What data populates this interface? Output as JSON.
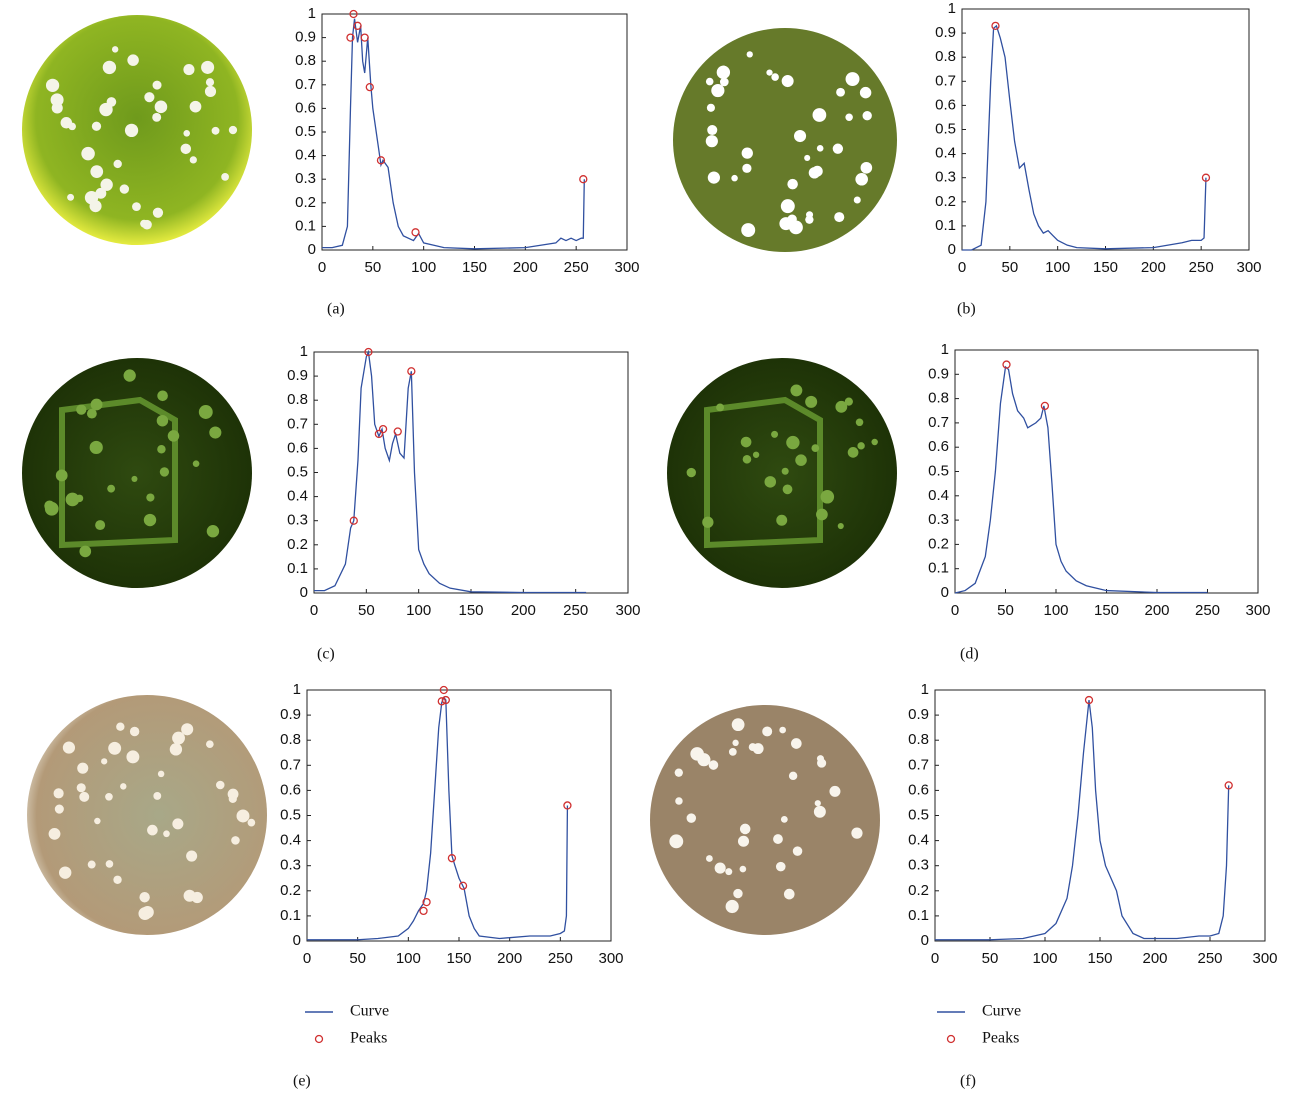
{
  "chart_data": [
    {
      "type": "line",
      "caption": "(a)",
      "xlim": [
        0,
        300
      ],
      "ylim": [
        0,
        1
      ],
      "xticks": [
        0,
        50,
        100,
        150,
        200,
        250,
        300
      ],
      "yticks": [
        0,
        0.1,
        0.2,
        0.3,
        0.4,
        0.5,
        0.6,
        0.7,
        0.8,
        0.9,
        1
      ],
      "series": [
        {
          "color": "#3050a0",
          "x": [
            0,
            10,
            20,
            25,
            28,
            30,
            32,
            35,
            38,
            40,
            42,
            45,
            48,
            50,
            55,
            58,
            60,
            65,
            70,
            75,
            80,
            90,
            95,
            100,
            110,
            120,
            150,
            200,
            230,
            235,
            240,
            245,
            250,
            255,
            257,
            258
          ],
          "values": [
            0.01,
            0.01,
            0.02,
            0.1,
            0.6,
            0.9,
            0.98,
            0.88,
            0.95,
            0.8,
            0.75,
            0.9,
            0.7,
            0.6,
            0.45,
            0.36,
            0.38,
            0.35,
            0.2,
            0.1,
            0.06,
            0.04,
            0.07,
            0.03,
            0.02,
            0.01,
            0.005,
            0.01,
            0.03,
            0.05,
            0.04,
            0.05,
            0.04,
            0.05,
            0.05,
            0.3
          ]
        },
        {
          "color": "#d03030",
          "marker": "circle",
          "x": [
            28,
            31,
            35,
            42,
            47,
            58,
            92,
            257
          ],
          "values": [
            0.9,
            1.0,
            0.95,
            0.9,
            0.69,
            0.38,
            0.075,
            0.3
          ]
        }
      ]
    },
    {
      "type": "line",
      "caption": "(b)",
      "xlim": [
        0,
        300
      ],
      "ylim": [
        0,
        1
      ],
      "xticks": [
        0,
        50,
        100,
        150,
        200,
        250,
        300
      ],
      "yticks": [
        0,
        0.1,
        0.2,
        0.3,
        0.4,
        0.5,
        0.6,
        0.7,
        0.8,
        0.9,
        1
      ],
      "series": [
        {
          "color": "#3050a0",
          "x": [
            0,
            10,
            20,
            25,
            30,
            33,
            36,
            40,
            45,
            50,
            55,
            60,
            65,
            70,
            75,
            80,
            85,
            90,
            95,
            100,
            110,
            120,
            150,
            200,
            230,
            240,
            250,
            253,
            255
          ],
          "values": [
            0,
            0,
            0.02,
            0.2,
            0.7,
            0.92,
            0.93,
            0.88,
            0.8,
            0.62,
            0.45,
            0.34,
            0.36,
            0.25,
            0.15,
            0.1,
            0.07,
            0.08,
            0.06,
            0.04,
            0.02,
            0.01,
            0.005,
            0.01,
            0.03,
            0.04,
            0.04,
            0.05,
            0.3
          ]
        },
        {
          "color": "#d03030",
          "marker": "circle",
          "x": [
            35,
            255
          ],
          "values": [
            0.93,
            0.3
          ]
        }
      ]
    },
    {
      "type": "line",
      "caption": "(c)",
      "xlim": [
        0,
        300
      ],
      "ylim": [
        0,
        1
      ],
      "xticks": [
        0,
        50,
        100,
        150,
        200,
        250,
        300
      ],
      "yticks": [
        0,
        0.1,
        0.2,
        0.3,
        0.4,
        0.5,
        0.6,
        0.7,
        0.8,
        0.9,
        1
      ],
      "series": [
        {
          "color": "#3050a0",
          "x": [
            0,
            10,
            20,
            30,
            35,
            38,
            42,
            45,
            50,
            52,
            55,
            58,
            62,
            65,
            68,
            72,
            75,
            78,
            82,
            86,
            90,
            93,
            96,
            100,
            105,
            110,
            120,
            130,
            150,
            200,
            260
          ],
          "values": [
            0.01,
            0.01,
            0.03,
            0.12,
            0.27,
            0.3,
            0.55,
            0.85,
            0.98,
            1.0,
            0.9,
            0.7,
            0.65,
            0.68,
            0.6,
            0.55,
            0.62,
            0.66,
            0.58,
            0.56,
            0.85,
            0.92,
            0.5,
            0.18,
            0.12,
            0.08,
            0.04,
            0.02,
            0.005,
            0.002,
            0.002
          ]
        },
        {
          "color": "#d03030",
          "marker": "circle",
          "x": [
            38,
            52,
            62,
            66,
            80,
            93
          ],
          "values": [
            0.3,
            1.0,
            0.66,
            0.68,
            0.67,
            0.92
          ]
        }
      ]
    },
    {
      "type": "line",
      "caption": "(d)",
      "xlim": [
        0,
        300
      ],
      "ylim": [
        0,
        1
      ],
      "xticks": [
        0,
        50,
        100,
        150,
        200,
        250,
        300
      ],
      "yticks": [
        0,
        0.1,
        0.2,
        0.3,
        0.4,
        0.5,
        0.6,
        0.7,
        0.8,
        0.9,
        1
      ],
      "series": [
        {
          "color": "#3050a0",
          "x": [
            0,
            10,
            20,
            30,
            35,
            40,
            45,
            50,
            53,
            57,
            62,
            68,
            72,
            76,
            80,
            85,
            88,
            92,
            96,
            100,
            105,
            110,
            120,
            130,
            150,
            200,
            250
          ],
          "values": [
            0,
            0.01,
            0.04,
            0.15,
            0.3,
            0.5,
            0.78,
            0.93,
            0.92,
            0.82,
            0.75,
            0.72,
            0.68,
            0.69,
            0.7,
            0.72,
            0.77,
            0.68,
            0.45,
            0.2,
            0.13,
            0.09,
            0.05,
            0.03,
            0.01,
            0.002,
            0.002
          ]
        },
        {
          "color": "#d03030",
          "marker": "circle",
          "x": [
            51,
            89
          ],
          "values": [
            0.94,
            0.77
          ]
        }
      ]
    },
    {
      "type": "line",
      "caption": "(e)",
      "legend": "below",
      "xlim": [
        0,
        300
      ],
      "ylim": [
        0,
        1
      ],
      "xticks": [
        0,
        50,
        100,
        150,
        200,
        250,
        300
      ],
      "yticks": [
        0,
        0.1,
        0.2,
        0.3,
        0.4,
        0.5,
        0.6,
        0.7,
        0.8,
        0.9,
        1
      ],
      "series": [
        {
          "name": "Curve",
          "color": "#3050a0",
          "x": [
            0,
            20,
            50,
            70,
            90,
            100,
            105,
            110,
            115,
            118,
            122,
            126,
            130,
            133,
            135,
            137,
            140,
            143,
            146,
            150,
            155,
            160,
            165,
            170,
            190,
            220,
            240,
            250,
            254,
            256,
            257
          ],
          "values": [
            0.005,
            0.005,
            0.005,
            0.01,
            0.02,
            0.05,
            0.08,
            0.12,
            0.15,
            0.2,
            0.35,
            0.6,
            0.85,
            0.95,
            0.97,
            0.96,
            0.6,
            0.34,
            0.3,
            0.25,
            0.21,
            0.1,
            0.05,
            0.02,
            0.01,
            0.02,
            0.02,
            0.03,
            0.04,
            0.1,
            0.54
          ]
        },
        {
          "name": "Peaks",
          "color": "#d03030",
          "marker": "circle",
          "x": [
            115,
            118,
            133,
            135,
            137,
            143,
            154,
            257
          ],
          "values": [
            0.12,
            0.155,
            0.955,
            1.0,
            0.96,
            0.33,
            0.22,
            0.54
          ]
        }
      ]
    },
    {
      "type": "line",
      "caption": "(f)",
      "legend": "below",
      "xlim": [
        0,
        300
      ],
      "ylim": [
        0,
        1
      ],
      "xticks": [
        0,
        50,
        100,
        150,
        200,
        250,
        300
      ],
      "yticks": [
        0,
        0.1,
        0.2,
        0.3,
        0.4,
        0.5,
        0.6,
        0.7,
        0.8,
        0.9,
        1
      ],
      "series": [
        {
          "name": "Curve",
          "color": "#3050a0",
          "x": [
            0,
            20,
            50,
            80,
            100,
            110,
            120,
            125,
            130,
            135,
            140,
            143,
            146,
            150,
            155,
            160,
            165,
            170,
            180,
            190,
            200,
            220,
            240,
            250,
            258,
            262,
            265,
            267
          ],
          "values": [
            0.005,
            0.005,
            0.005,
            0.01,
            0.03,
            0.07,
            0.17,
            0.3,
            0.5,
            0.75,
            0.96,
            0.85,
            0.6,
            0.4,
            0.3,
            0.25,
            0.2,
            0.1,
            0.03,
            0.01,
            0.01,
            0.01,
            0.02,
            0.02,
            0.03,
            0.1,
            0.3,
            0.62
          ]
        },
        {
          "name": "Peaks",
          "color": "#d03030",
          "marker": "circle",
          "x": [
            140,
            267
          ],
          "values": [
            0.96,
            0.62
          ]
        }
      ]
    }
  ]
}
